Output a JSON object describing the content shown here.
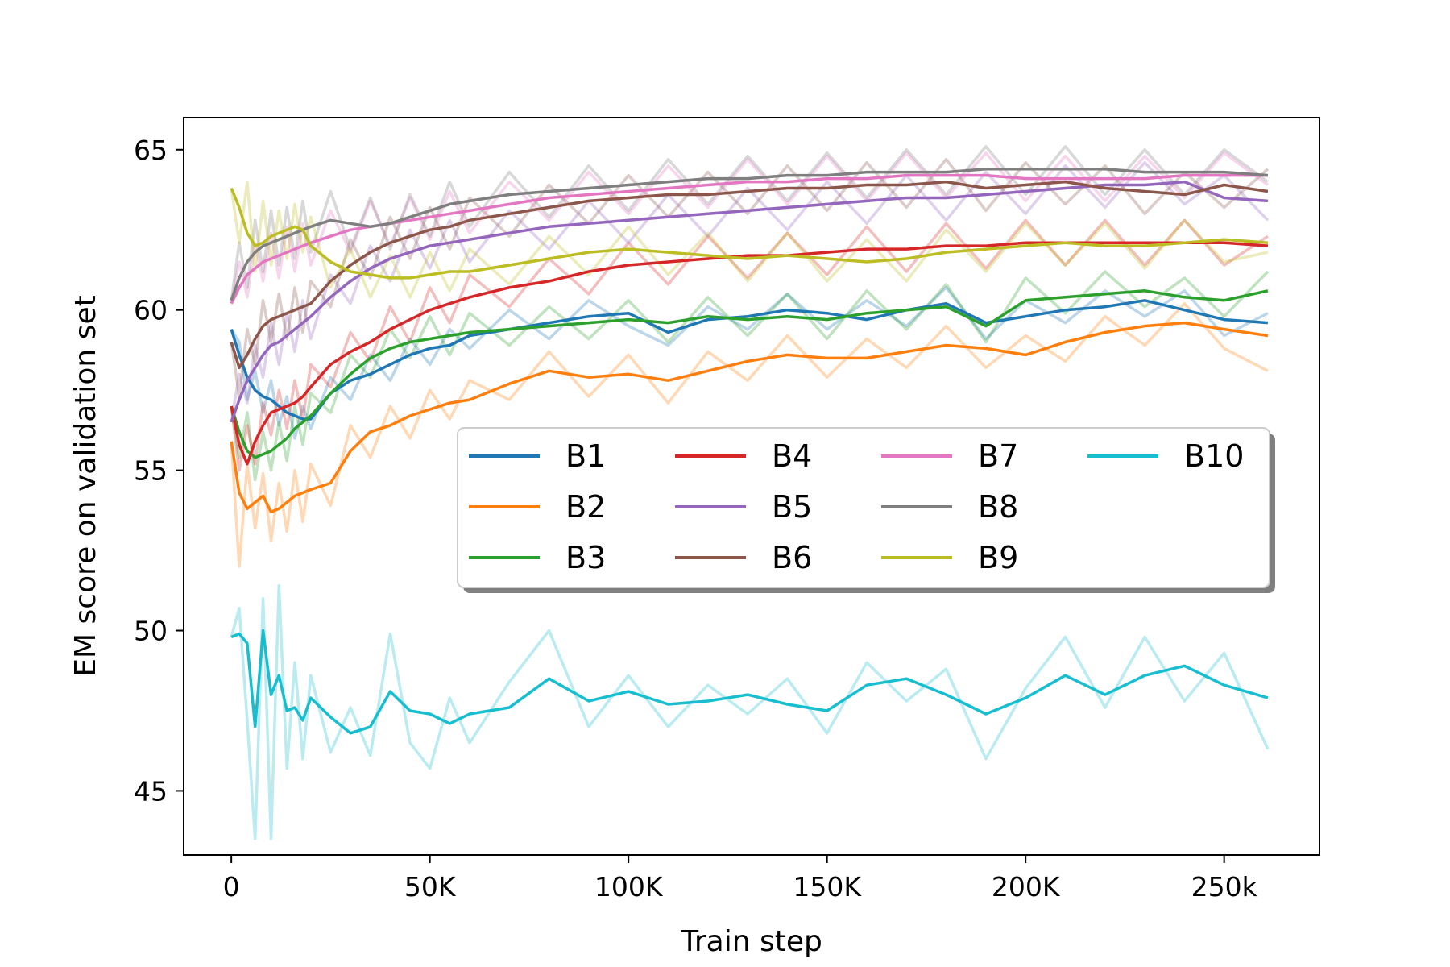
{
  "chart_data": {
    "type": "line",
    "title": "",
    "xlabel": "Train step",
    "ylabel": "EM score on validation set",
    "xlim": [
      -12000,
      274000
    ],
    "ylim": [
      43,
      66
    ],
    "xticks": [
      0,
      50000,
      100000,
      150000,
      200000,
      250000
    ],
    "xtick_labels": [
      "0",
      "50K",
      "100K",
      "150K",
      "200K",
      "250k"
    ],
    "yticks": [
      45,
      50,
      55,
      60,
      65
    ],
    "ytick_labels": [
      "45",
      "50",
      "55",
      "60",
      "65"
    ],
    "grid": false,
    "legend": {
      "placement": "center-right",
      "columns": 4,
      "shadow": true
    },
    "raw_line_opacity": 0.3,
    "x": [
      0,
      2000,
      4000,
      6000,
      8000,
      10000,
      12000,
      14000,
      16000,
      18000,
      20000,
      25000,
      30000,
      35000,
      40000,
      45000,
      50000,
      55000,
      60000,
      70000,
      80000,
      90000,
      100000,
      110000,
      120000,
      130000,
      140000,
      150000,
      160000,
      170000,
      180000,
      190000,
      200000,
      210000,
      220000,
      230000,
      240000,
      250000,
      261000
    ],
    "series": [
      {
        "name": "B1",
        "color": "#1f77b4",
        "values": [
          59.4,
          58.6,
          57.9,
          57.5,
          57.3,
          57.2,
          57.0,
          56.8,
          56.7,
          56.6,
          56.6,
          57.4,
          57.8,
          58.0,
          58.3,
          58.6,
          58.8,
          58.9,
          59.2,
          59.4,
          59.6,
          59.8,
          59.9,
          59.3,
          59.7,
          59.8,
          60.0,
          59.9,
          59.7,
          60.0,
          60.2,
          59.6,
          59.8,
          60.0,
          60.1,
          60.3,
          60.0,
          59.7,
          59.6
        ],
        "raw_values": [
          59.4,
          59.0,
          57.2,
          58.1,
          56.8,
          57.8,
          56.4,
          57.3,
          56.0,
          57.0,
          56.3,
          57.9,
          57.2,
          58.6,
          57.8,
          59.1,
          58.3,
          59.4,
          58.8,
          60.0,
          59.1,
          60.3,
          59.5,
          58.9,
          60.1,
          59.4,
          60.5,
          59.4,
          60.3,
          59.5,
          60.7,
          59.1,
          60.3,
          59.6,
          60.6,
          59.8,
          60.6,
          59.2,
          59.9
        ]
      },
      {
        "name": "B2",
        "color": "#ff7f0e",
        "values": [
          55.9,
          54.3,
          53.8,
          54.0,
          54.2,
          53.7,
          53.8,
          54.0,
          54.2,
          54.3,
          54.4,
          54.6,
          55.6,
          56.2,
          56.4,
          56.7,
          56.9,
          57.1,
          57.2,
          57.7,
          58.1,
          57.9,
          58.0,
          57.8,
          58.1,
          58.4,
          58.6,
          58.5,
          58.5,
          58.7,
          58.9,
          58.8,
          58.6,
          59.0,
          59.3,
          59.5,
          59.6,
          59.4,
          59.2
        ],
        "raw_values": [
          55.9,
          52.0,
          55.2,
          53.2,
          54.9,
          52.8,
          54.6,
          53.1,
          55.0,
          53.4,
          55.2,
          53.9,
          56.4,
          55.4,
          57.0,
          56.0,
          57.5,
          56.6,
          57.8,
          57.2,
          58.7,
          57.3,
          58.6,
          57.1,
          58.7,
          57.8,
          59.2,
          57.9,
          59.1,
          58.2,
          59.5,
          58.2,
          59.2,
          58.4,
          59.8,
          58.9,
          60.2,
          58.8,
          58.1
        ]
      },
      {
        "name": "B3",
        "color": "#2ca02c",
        "values": [
          57.0,
          56.2,
          55.6,
          55.4,
          55.5,
          55.6,
          55.8,
          56.0,
          56.3,
          56.5,
          56.7,
          57.4,
          58.0,
          58.5,
          58.8,
          59.0,
          59.1,
          59.2,
          59.3,
          59.4,
          59.5,
          59.6,
          59.7,
          59.6,
          59.8,
          59.7,
          59.8,
          59.7,
          59.9,
          60.0,
          60.1,
          59.5,
          60.3,
          60.4,
          60.5,
          60.6,
          60.4,
          60.3,
          60.6
        ],
        "raw_values": [
          57.0,
          55.4,
          56.8,
          54.7,
          56.2,
          55.0,
          56.5,
          55.3,
          57.0,
          55.8,
          57.4,
          56.8,
          58.6,
          57.9,
          59.4,
          58.5,
          59.8,
          58.6,
          59.9,
          58.9,
          60.1,
          59.1,
          60.3,
          59.0,
          60.4,
          59.2,
          60.5,
          59.1,
          60.6,
          59.4,
          60.8,
          59.0,
          61.0,
          59.9,
          61.2,
          60.1,
          61.0,
          59.8,
          61.2
        ]
      },
      {
        "name": "B4",
        "color": "#d62728",
        "values": [
          57.0,
          55.8,
          55.2,
          55.9,
          56.4,
          56.8,
          56.9,
          57.0,
          57.1,
          57.3,
          57.6,
          58.3,
          58.7,
          59.0,
          59.4,
          59.7,
          60.0,
          60.2,
          60.4,
          60.7,
          60.9,
          61.2,
          61.4,
          61.5,
          61.6,
          61.7,
          61.7,
          61.8,
          61.9,
          61.9,
          62.0,
          62.0,
          62.1,
          62.1,
          62.1,
          62.1,
          62.1,
          62.1,
          62.0
        ],
        "raw_values": [
          57.0,
          55.0,
          56.4,
          55.2,
          57.1,
          56.1,
          57.5,
          56.3,
          57.8,
          56.6,
          58.3,
          57.6,
          59.3,
          58.4,
          60.1,
          59.0,
          60.7,
          59.6,
          61.1,
          60.1,
          61.6,
          60.5,
          62.1,
          60.8,
          62.3,
          61.0,
          62.4,
          61.1,
          62.6,
          61.2,
          62.7,
          61.3,
          62.8,
          61.4,
          62.8,
          61.4,
          62.8,
          61.4,
          62.3
        ]
      },
      {
        "name": "B5",
        "color": "#9467bd",
        "values": [
          56.5,
          57.2,
          57.8,
          58.2,
          58.6,
          58.9,
          59.0,
          59.2,
          59.4,
          59.6,
          59.8,
          60.4,
          60.9,
          61.3,
          61.6,
          61.8,
          62.0,
          62.1,
          62.2,
          62.4,
          62.6,
          62.7,
          62.8,
          62.9,
          63.0,
          63.1,
          63.2,
          63.3,
          63.4,
          63.5,
          63.5,
          63.6,
          63.7,
          63.8,
          63.9,
          63.9,
          64.0,
          63.5,
          63.4
        ],
        "raw_values": [
          56.5,
          58.0,
          57.1,
          58.9,
          57.9,
          59.6,
          58.3,
          59.9,
          58.7,
          60.3,
          59.1,
          61.1,
          60.2,
          62.0,
          60.9,
          62.5,
          61.3,
          62.8,
          61.5,
          63.1,
          61.9,
          63.4,
          62.1,
          63.6,
          62.3,
          63.8,
          62.5,
          64.0,
          62.7,
          64.2,
          62.8,
          64.3,
          63.0,
          64.5,
          63.2,
          64.6,
          63.3,
          64.2,
          62.8
        ]
      },
      {
        "name": "B6",
        "color": "#8c564b",
        "values": [
          59.0,
          58.2,
          58.6,
          59.1,
          59.5,
          59.7,
          59.8,
          59.9,
          60.0,
          60.1,
          60.2,
          60.9,
          61.4,
          61.8,
          62.1,
          62.3,
          62.5,
          62.6,
          62.8,
          63.0,
          63.2,
          63.4,
          63.5,
          63.6,
          63.6,
          63.7,
          63.8,
          63.8,
          63.9,
          63.9,
          64.0,
          63.8,
          63.9,
          64.0,
          63.8,
          63.7,
          63.6,
          63.9,
          63.7
        ],
        "raw_values": [
          59.0,
          57.3,
          59.4,
          58.3,
          60.3,
          59.0,
          60.5,
          59.1,
          60.7,
          59.3,
          60.9,
          60.1,
          62.2,
          61.0,
          62.9,
          61.6,
          63.2,
          61.9,
          63.5,
          62.3,
          63.9,
          62.7,
          64.2,
          62.9,
          64.3,
          63.0,
          64.5,
          63.1,
          64.6,
          63.2,
          64.7,
          63.1,
          64.6,
          63.3,
          64.5,
          63.0,
          64.3,
          63.2,
          64.4
        ]
      },
      {
        "name": "B7",
        "color": "#e377c2",
        "values": [
          60.2,
          60.7,
          61.1,
          61.3,
          61.5,
          61.6,
          61.7,
          61.8,
          61.9,
          62.0,
          62.1,
          62.3,
          62.5,
          62.6,
          62.7,
          62.8,
          62.9,
          63.0,
          63.1,
          63.3,
          63.5,
          63.6,
          63.7,
          63.8,
          63.9,
          64.0,
          64.0,
          64.1,
          64.1,
          64.2,
          64.2,
          64.2,
          64.1,
          64.1,
          64.1,
          64.1,
          64.2,
          64.2,
          64.2
        ],
        "raw_values": [
          60.2,
          61.5,
          60.4,
          62.1,
          60.9,
          62.4,
          61.0,
          62.6,
          61.2,
          62.7,
          61.4,
          63.1,
          61.8,
          63.4,
          62.0,
          63.5,
          62.2,
          63.7,
          62.4,
          64.0,
          62.8,
          64.3,
          63.0,
          64.5,
          63.2,
          64.7,
          63.3,
          64.8,
          63.4,
          64.9,
          63.5,
          64.9,
          63.4,
          64.8,
          63.4,
          64.8,
          63.5,
          64.9,
          63.9
        ]
      },
      {
        "name": "B8",
        "color": "#7f7f7f",
        "values": [
          60.3,
          61.0,
          61.5,
          61.8,
          62.0,
          62.1,
          62.2,
          62.3,
          62.4,
          62.5,
          62.6,
          62.8,
          62.7,
          62.6,
          62.7,
          62.9,
          63.1,
          63.3,
          63.4,
          63.6,
          63.7,
          63.8,
          63.9,
          64.0,
          64.1,
          64.1,
          64.2,
          64.2,
          64.3,
          64.3,
          64.3,
          64.4,
          64.4,
          64.4,
          64.4,
          64.3,
          64.3,
          64.3,
          64.2
        ],
        "raw_values": [
          60.3,
          62.1,
          60.7,
          62.8,
          61.2,
          63.1,
          61.4,
          63.2,
          61.6,
          63.4,
          61.8,
          63.7,
          61.9,
          63.5,
          61.9,
          63.6,
          62.3,
          64.0,
          62.6,
          64.3,
          62.9,
          64.5,
          63.1,
          64.7,
          63.3,
          64.8,
          63.4,
          64.9,
          63.5,
          65.0,
          63.6,
          65.1,
          63.6,
          65.1,
          63.6,
          65.0,
          63.6,
          65.0,
          64.0
        ]
      },
      {
        "name": "B9",
        "color": "#bcbd22",
        "values": [
          63.8,
          63.2,
          62.4,
          62.0,
          62.1,
          62.3,
          62.4,
          62.5,
          62.6,
          62.5,
          62.0,
          61.5,
          61.2,
          61.1,
          61.0,
          61.0,
          61.1,
          61.2,
          61.2,
          61.4,
          61.6,
          61.8,
          61.9,
          61.8,
          61.7,
          61.6,
          61.7,
          61.6,
          61.5,
          61.6,
          61.8,
          61.9,
          62.0,
          62.1,
          62.0,
          62.0,
          62.1,
          62.2,
          62.1
        ],
        "raw_values": [
          63.8,
          62.1,
          64.0,
          61.2,
          63.4,
          61.4,
          63.1,
          61.6,
          63.3,
          61.8,
          62.9,
          60.7,
          61.9,
          60.4,
          61.7,
          60.4,
          61.8,
          60.6,
          61.9,
          60.8,
          62.3,
          61.1,
          62.6,
          61.1,
          62.4,
          60.9,
          62.4,
          60.9,
          62.2,
          60.9,
          62.5,
          61.2,
          62.7,
          61.4,
          62.7,
          61.3,
          62.8,
          61.5,
          61.8
        ]
      },
      {
        "name": "B10",
        "color": "#17becf",
        "values": [
          49.8,
          49.9,
          49.6,
          47.0,
          50.0,
          48.0,
          48.6,
          47.5,
          47.6,
          47.2,
          47.9,
          47.3,
          46.8,
          47.0,
          48.1,
          47.5,
          47.4,
          47.1,
          47.4,
          47.6,
          48.5,
          47.8,
          48.1,
          47.7,
          47.8,
          48.0,
          47.7,
          47.5,
          48.3,
          48.5,
          48.0,
          47.4,
          47.9,
          48.6,
          48.0,
          48.6,
          48.9,
          48.3,
          47.9
        ],
        "raw_values": [
          49.8,
          50.7,
          47.2,
          43.5,
          51.0,
          43.5,
          51.4,
          45.7,
          49.0,
          46.0,
          48.6,
          46.2,
          47.6,
          46.1,
          49.9,
          46.5,
          45.7,
          47.9,
          46.5,
          48.4,
          50.0,
          47.0,
          48.6,
          47.0,
          48.3,
          47.4,
          48.5,
          46.8,
          49.0,
          47.8,
          48.8,
          46.0,
          48.2,
          49.8,
          47.6,
          49.8,
          47.8,
          49.3,
          46.3
        ]
      }
    ]
  }
}
